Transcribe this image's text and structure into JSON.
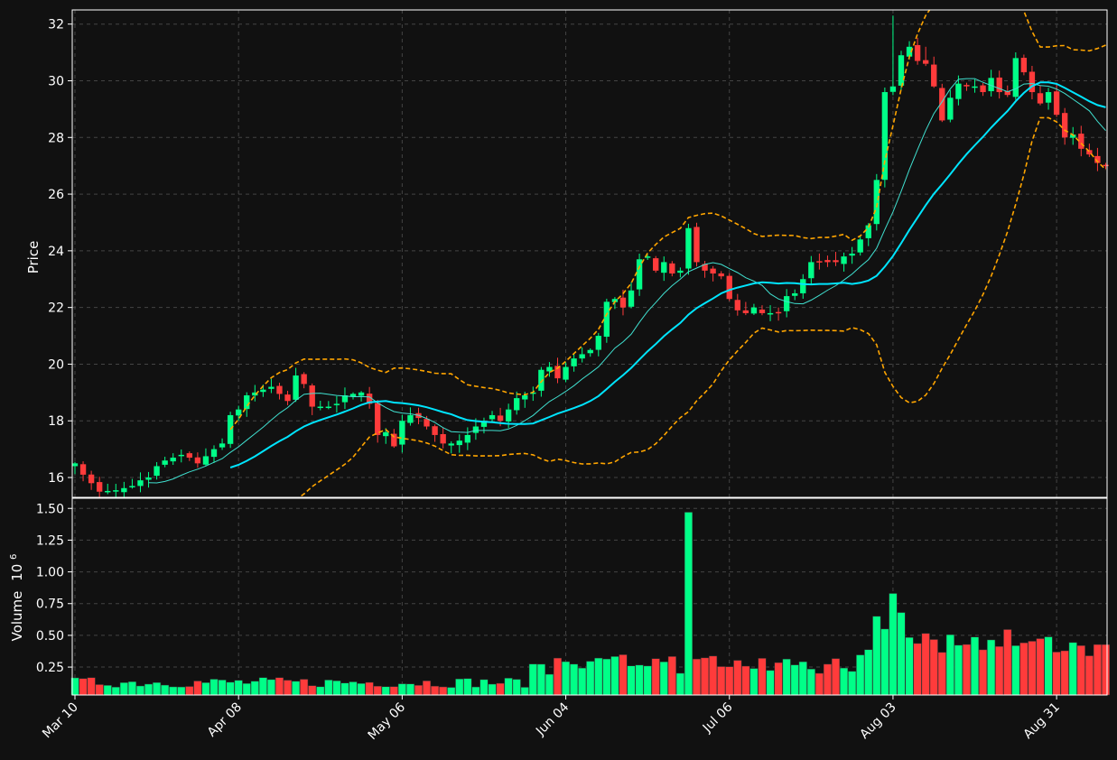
{
  "chart_data": {
    "type": "candlestick",
    "colors": {
      "background": "#111111",
      "up": "#00ff88",
      "down": "#ff3b3b",
      "sma_fast": "#40e0d0",
      "sma_slow": "#00e5ff",
      "bollinger": "#ffa500",
      "grid": "#444444",
      "axes": "#ffffff"
    },
    "price_panel": {
      "ylabel": "Price",
      "ylim": [
        15.3,
        32.5
      ],
      "yticks": [
        "16",
        "18",
        "20",
        "22",
        "24",
        "26",
        "28",
        "30",
        "32"
      ],
      "grid": true
    },
    "volume_panel": {
      "ylabel": "Volume",
      "ylabel_exponent": "10",
      "ylabel_exponent_power": "6",
      "ylim": [
        0.03,
        1.58
      ],
      "yticks": [
        "0.25",
        "0.50",
        "0.75",
        "1.00",
        "1.25",
        "1.50"
      ],
      "grid": true
    },
    "x_ticks": [
      {
        "index": 0,
        "label": "Mar 10"
      },
      {
        "index": 20,
        "label": "Apr 08"
      },
      {
        "index": 40,
        "label": "May 06"
      },
      {
        "index": 60,
        "label": "Jun 04"
      },
      {
        "index": 80,
        "label": "Jul 06"
      },
      {
        "index": 100,
        "label": "Aug 03"
      },
      {
        "index": 120,
        "label": "Aug 31"
      }
    ],
    "n_bars": 127,
    "series": [
      {
        "name": "OHLC",
        "close_anchors": [
          [
            0,
            16.5
          ],
          [
            1,
            16.1
          ],
          [
            2,
            15.8
          ],
          [
            3,
            15.5
          ],
          [
            5,
            15.55
          ],
          [
            7,
            15.7
          ],
          [
            8,
            15.9
          ],
          [
            9,
            16.0
          ],
          [
            10,
            16.4
          ],
          [
            11,
            16.6
          ],
          [
            13,
            16.8
          ],
          [
            14,
            16.7
          ],
          [
            15,
            16.5
          ],
          [
            17,
            17.0
          ],
          [
            18,
            17.2
          ],
          [
            19,
            18.2
          ],
          [
            20,
            18.4
          ],
          [
            21,
            18.9
          ],
          [
            22,
            19.0
          ],
          [
            24,
            19.2
          ],
          [
            26,
            18.7
          ],
          [
            27,
            19.6
          ],
          [
            28,
            19.3
          ],
          [
            29,
            18.5
          ],
          [
            31,
            18.5
          ],
          [
            32,
            18.6
          ],
          [
            33,
            18.9
          ],
          [
            35,
            19.0
          ],
          [
            36,
            18.6
          ],
          [
            37,
            17.5
          ],
          [
            38,
            17.6
          ],
          [
            39,
            17.1
          ],
          [
            40,
            18.0
          ],
          [
            41,
            18.2
          ],
          [
            42,
            18.1
          ],
          [
            43,
            17.8
          ],
          [
            44,
            17.5
          ],
          [
            45,
            17.2
          ],
          [
            46,
            17.2
          ],
          [
            47,
            17.3
          ],
          [
            48,
            17.5
          ],
          [
            49,
            17.8
          ],
          [
            50,
            18.0
          ],
          [
            51,
            18.2
          ],
          [
            52,
            18.0
          ],
          [
            53,
            18.4
          ],
          [
            54,
            18.8
          ],
          [
            56,
            19.0
          ],
          [
            57,
            19.8
          ],
          [
            58,
            19.9
          ],
          [
            59,
            19.5
          ],
          [
            60,
            19.9
          ],
          [
            61,
            20.2
          ],
          [
            63,
            20.5
          ],
          [
            64,
            21.0
          ],
          [
            65,
            22.2
          ],
          [
            66,
            22.3
          ],
          [
            67,
            22.0
          ],
          [
            68,
            22.6
          ],
          [
            69,
            23.7
          ],
          [
            70,
            23.8
          ],
          [
            71,
            23.3
          ],
          [
            72,
            23.6
          ],
          [
            73,
            23.2
          ],
          [
            74,
            23.3
          ],
          [
            75,
            24.8
          ],
          [
            76,
            23.6
          ],
          [
            77,
            23.3
          ],
          [
            78,
            23.2
          ],
          [
            79,
            23.1
          ],
          [
            80,
            22.3
          ],
          [
            81,
            21.9
          ],
          [
            82,
            21.8
          ],
          [
            83,
            22.0
          ],
          [
            84,
            21.8
          ],
          [
            86,
            21.8
          ],
          [
            87,
            22.4
          ],
          [
            88,
            22.5
          ],
          [
            89,
            23.0
          ],
          [
            90,
            23.6
          ],
          [
            92,
            23.6
          ],
          [
            93,
            23.6
          ],
          [
            94,
            23.8
          ],
          [
            95,
            23.9
          ],
          [
            96,
            24.4
          ],
          [
            97,
            24.9
          ],
          [
            98,
            26.5
          ],
          [
            99,
            29.6
          ],
          [
            100,
            29.8
          ],
          [
            101,
            30.9
          ],
          [
            102,
            31.2
          ],
          [
            103,
            30.7
          ],
          [
            104,
            30.6
          ],
          [
            105,
            29.8
          ],
          [
            106,
            28.6
          ],
          [
            107,
            29.4
          ],
          [
            108,
            29.9
          ],
          [
            110,
            29.8
          ],
          [
            111,
            29.6
          ],
          [
            112,
            30.1
          ],
          [
            113,
            29.6
          ],
          [
            114,
            29.5
          ],
          [
            115,
            30.8
          ],
          [
            116,
            30.3
          ],
          [
            117,
            29.6
          ],
          [
            118,
            29.2
          ],
          [
            119,
            29.6
          ],
          [
            120,
            28.8
          ],
          [
            121,
            28.0
          ],
          [
            122,
            28.1
          ],
          [
            123,
            27.6
          ],
          [
            124,
            27.4
          ],
          [
            125,
            27.1
          ],
          [
            126,
            27.0
          ]
        ]
      },
      {
        "name": "Volume",
        "peaks": [
          [
            75,
            1.47
          ],
          [
            100,
            0.83
          ],
          [
            99,
            0.55
          ],
          [
            98,
            0.65
          ],
          [
            101,
            0.68
          ]
        ]
      }
    ]
  }
}
